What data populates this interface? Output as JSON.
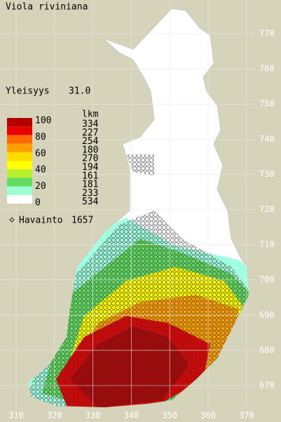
{
  "title": "Viola riviniana",
  "frequency": {
    "label": "Yleisyys",
    "value": "31.0"
  },
  "legend": {
    "scale": [
      100,
      80,
      60,
      40,
      20,
      0
    ],
    "count_header": "lkm",
    "counts": [
      334,
      227,
      254,
      180,
      270,
      194,
      161,
      181,
      233,
      534
    ],
    "colors": [
      "#b40000",
      "#e80000",
      "#ff6a00",
      "#ffa000",
      "#ffdc00",
      "#ffff00",
      "#b8f030",
      "#60dc60",
      "#a0ffd0",
      "#ffffff"
    ]
  },
  "observations": {
    "label": "Havainto",
    "value": 1657
  },
  "grid": {
    "y_labels": [
      770,
      760,
      750,
      740,
      730,
      720,
      710,
      700,
      690,
      680,
      670
    ],
    "x_labels": [
      310,
      320,
      330,
      340,
      350,
      360,
      370
    ]
  }
}
